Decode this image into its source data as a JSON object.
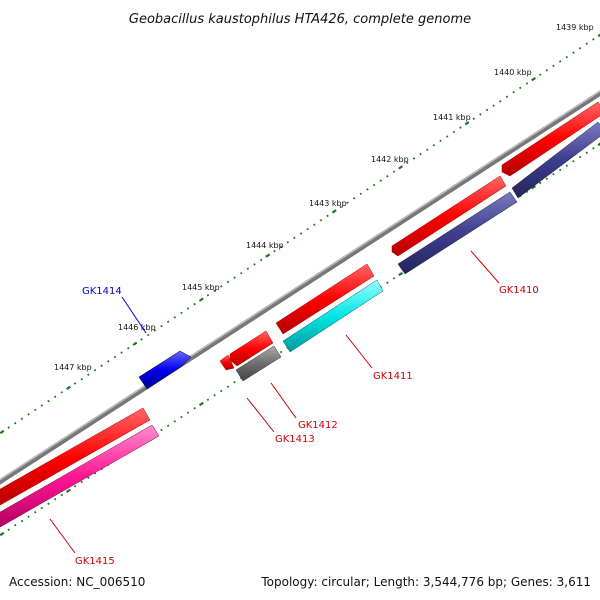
{
  "title": "Geobacillus kaustophilus HTA426, complete genome",
  "footer": {
    "accession": "Accession: NC_006510",
    "summary": "Topology: circular; Length: 3,544,776 bp; Genes: 3,611"
  },
  "colors": {
    "backbone": "#888888",
    "tick": "#1a7a1a",
    "forward_red": "#ff0000",
    "gk1414": "#0000ee",
    "gk1410": "#3d3d8f",
    "gk1411": "#00e5e5",
    "gk1412": "#6e6e6e",
    "gk1415": "#ff1493",
    "label_red": "#cc0000",
    "label_blue": "#0000cc"
  },
  "ticks": [
    {
      "label": "1439 kbp"
    },
    {
      "label": "1440 kbp"
    },
    {
      "label": "1441 kbp"
    },
    {
      "label": "1442 kbp"
    },
    {
      "label": "1443 kbp"
    },
    {
      "label": "1444 kbp"
    },
    {
      "label": "1445 kbp"
    },
    {
      "label": "1446 kbp"
    },
    {
      "label": "1447 kbp"
    }
  ],
  "genes": [
    {
      "label": "GK1410",
      "color": "#3d3d8f",
      "label_color": "#cc0000"
    },
    {
      "label": "GK1411",
      "color": "#00e5e5",
      "label_color": "#cc0000"
    },
    {
      "label": "GK1412",
      "color": "#6e6e6e",
      "label_color": "#cc0000"
    },
    {
      "label": "GK1413",
      "color": "#ff0000",
      "label_color": "#cc0000"
    },
    {
      "label": "GK1414",
      "color": "#0000ee",
      "label_color": "#0000cc"
    },
    {
      "label": "GK1415",
      "color": "#ff1493",
      "label_color": "#cc0000"
    }
  ]
}
